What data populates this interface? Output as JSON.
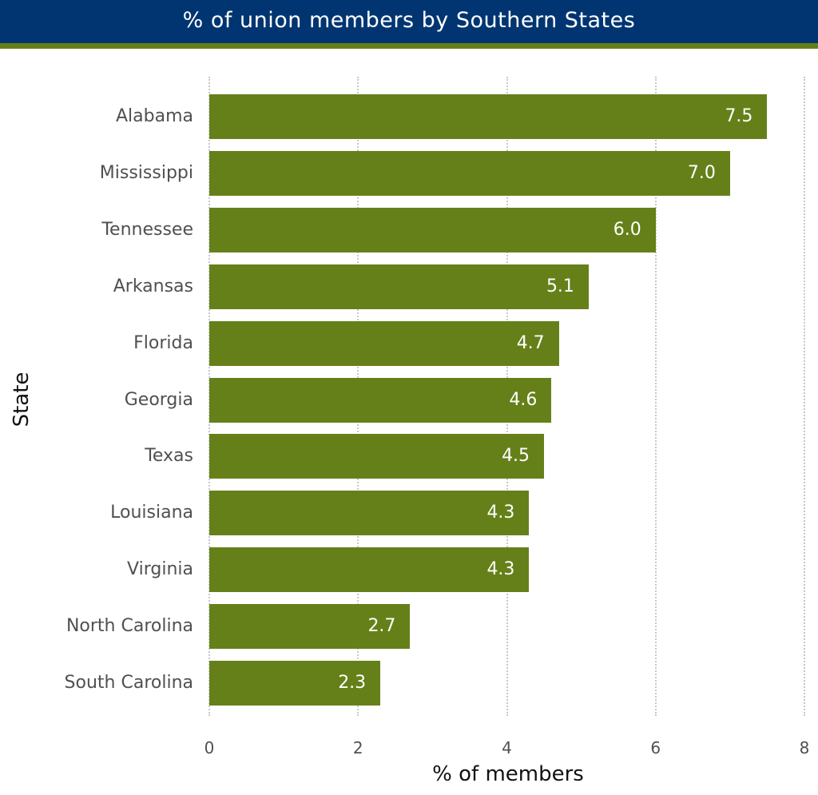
{
  "header": {
    "title": "% of union members by Southern States"
  },
  "colors": {
    "header_bg": "#013571",
    "accent_stripe": "#65801a",
    "bar": "#668019"
  },
  "chart_data": {
    "type": "bar",
    "orientation": "horizontal",
    "title": "% of union members by Southern States",
    "xlabel": "% of members",
    "ylabel": "State",
    "categories": [
      "Alabama",
      "Mississippi",
      "Tennessee",
      "Arkansas",
      "Florida",
      "Georgia",
      "Texas",
      "Louisiana",
      "Virginia",
      "North Carolina",
      "South Carolina"
    ],
    "values": [
      7.5,
      7.0,
      6.0,
      5.1,
      4.7,
      4.6,
      4.5,
      4.3,
      4.3,
      2.7,
      2.3
    ],
    "value_labels": [
      "7.5",
      "7.0",
      "6.0",
      "5.1",
      "4.7",
      "4.6",
      "4.5",
      "4.3",
      "4.3",
      "2.7",
      "2.3"
    ],
    "xlim": [
      0,
      8
    ],
    "xticks": [
      "0",
      "2",
      "4",
      "6",
      "8"
    ],
    "grid": "vertical dotted",
    "legend": "none"
  }
}
